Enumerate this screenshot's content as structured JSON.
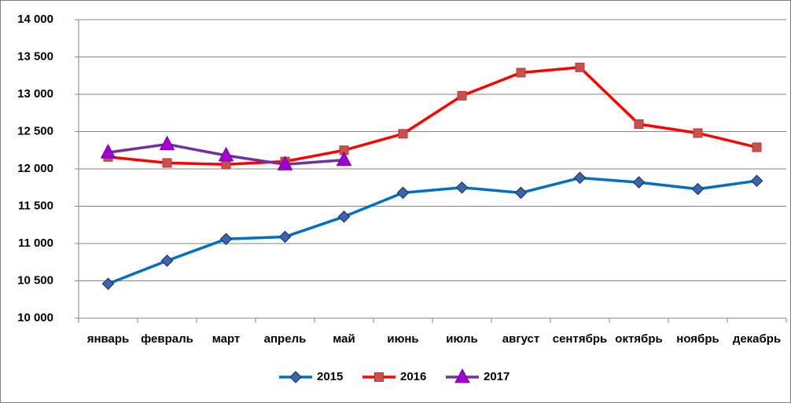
{
  "chart_data": {
    "type": "line",
    "categories": [
      "январь",
      "февраль",
      "март",
      "апрель",
      "май",
      "июнь",
      "июль",
      "август",
      "сентябрь",
      "октябрь",
      "ноябрь",
      "декабрь"
    ],
    "series": [
      {
        "name": "2015",
        "color": "#0070c0",
        "marker": "diamond",
        "marker_color": "#3a66b0",
        "values": [
          10460,
          10770,
          11060,
          11090,
          11360,
          11680,
          11750,
          11680,
          11880,
          11820,
          11730,
          11840
        ]
      },
      {
        "name": "2016",
        "color": "#ff0000",
        "marker": "square",
        "marker_color": "#c8504d",
        "values": [
          12160,
          12080,
          12060,
          12100,
          12250,
          12470,
          12980,
          13290,
          13360,
          12600,
          12480,
          12290
        ]
      },
      {
        "name": "2017",
        "color": "#7030a0",
        "marker": "triangle",
        "marker_color": "#a000d0",
        "values": [
          12220,
          12330,
          12180,
          12060,
          12120,
          null,
          null,
          null,
          null,
          null,
          null,
          null
        ]
      }
    ],
    "ylim": [
      10000,
      14000
    ],
    "yticks": [
      {
        "value": 10000,
        "label": "10 000"
      },
      {
        "value": 10500,
        "label": "10 500"
      },
      {
        "value": 11000,
        "label": "11 000"
      },
      {
        "value": 11500,
        "label": "11 500"
      },
      {
        "value": 12000,
        "label": "12 000"
      },
      {
        "value": 12500,
        "label": "12 500"
      },
      {
        "value": 13000,
        "label": "13 000"
      },
      {
        "value": 13500,
        "label": "13 500"
      },
      {
        "value": 14000,
        "label": "14 000"
      }
    ],
    "grid": true,
    "legend": "bottom"
  }
}
